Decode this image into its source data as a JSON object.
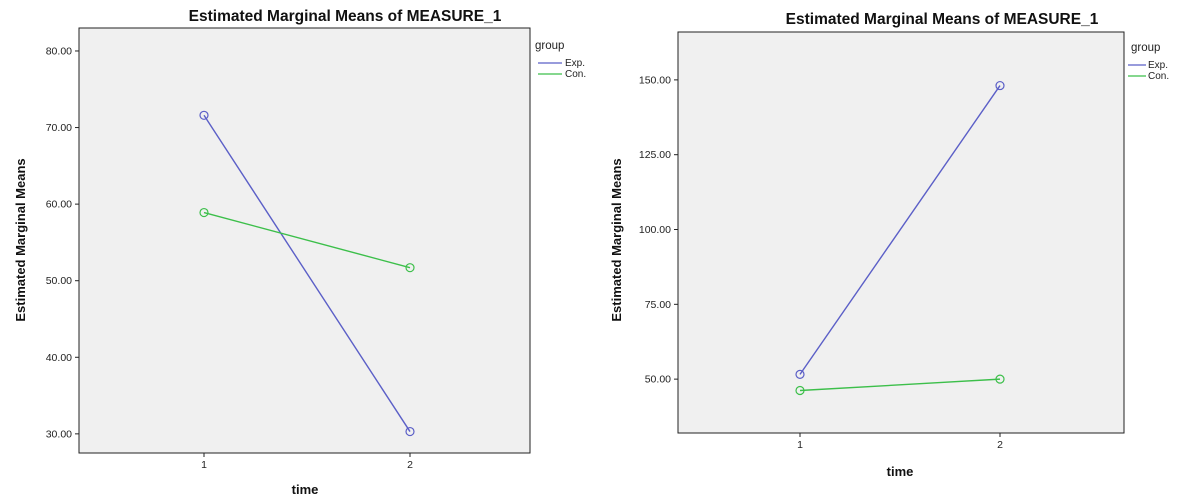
{
  "legend": {
    "title": "group",
    "placement": "right"
  },
  "chart_data": [
    {
      "type": "line",
      "title": "Estimated Marginal Means of MEASURE_1",
      "xlabel": "time",
      "ylabel": "Estimated Marginal Means",
      "categories": [
        "1",
        "2"
      ],
      "ylim": [
        27.5,
        83.0
      ],
      "yticks": [
        "30.00",
        "40.00",
        "50.00",
        "60.00",
        "70.00",
        "80.00"
      ],
      "grid": false,
      "series": [
        {
          "name": "Exp.",
          "color": "#5b5fc7",
          "values": [
            71.6,
            30.3
          ]
        },
        {
          "name": "Con.",
          "color": "#3cbf4a",
          "values": [
            58.9,
            51.7
          ]
        }
      ]
    },
    {
      "type": "line",
      "title": "Estimated Marginal Means of MEASURE_1",
      "xlabel": "time",
      "ylabel": "Estimated Marginal Means",
      "categories": [
        "1",
        "2"
      ],
      "ylim": [
        32.0,
        166.0
      ],
      "yticks": [
        "50.00",
        "75.00",
        "100.00",
        "125.00",
        "150.00"
      ],
      "grid": false,
      "series": [
        {
          "name": "Exp.",
          "color": "#5b5fc7",
          "values": [
            51.6,
            148.1
          ]
        },
        {
          "name": "Con.",
          "color": "#3cbf4a",
          "values": [
            46.2,
            50.0
          ]
        }
      ]
    }
  ]
}
